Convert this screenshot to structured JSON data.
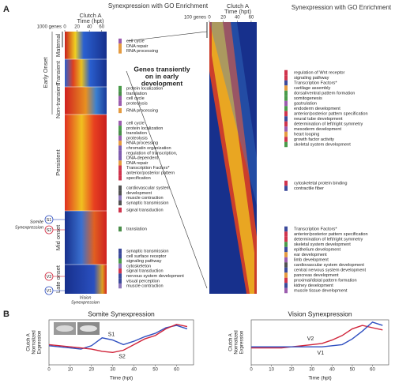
{
  "panel_a": {
    "label": "A",
    "left_heatmap": {
      "header": "Clutch A",
      "axis_label": "Time (hpt)",
      "xticks": [
        0,
        20,
        40,
        60
      ],
      "xlim": [
        0,
        68
      ],
      "scale_label": "1000 genes"
    },
    "right_heatmap": {
      "header": "Clutch A",
      "axis_label": "Time (hpt)",
      "xticks": [
        0,
        20,
        40,
        60
      ],
      "xlim": [
        0,
        68
      ],
      "scale_label": "100 genes"
    },
    "title_left": "Synexpression with GO Enrichment",
    "title_right": "Synexpression with GO Enrichment",
    "callout": [
      "Genes transiently",
      "on in early",
      "development"
    ],
    "row_labels": [
      "Maternal",
      "Transient",
      "Non-transient",
      "Persistent",
      "Mid onset",
      "Late onset"
    ],
    "group_label": "Early Onset",
    "somite_label": [
      "Somite",
      "Synexpression"
    ],
    "vision_label": [
      "Vision",
      "Synexpression"
    ],
    "markers": [
      "S1",
      "S2",
      "V2",
      "V1"
    ],
    "go_left": [
      {
        "terms": [
          {
            "text": "cell cycle",
            "color": "#8a3fa0"
          },
          {
            "text": "DNA repair",
            "color": "#e08a1e"
          },
          {
            "text": "RNA processing",
            "color": "#e08a1e"
          }
        ]
      },
      {
        "terms": [
          {
            "text": "protein localization",
            "color": "#2a8a2a"
          },
          {
            "text": "translation",
            "color": "#2a7a2a"
          },
          {
            "text": "cell cycle",
            "color": "#8a3fa0"
          },
          {
            "text": "proteolysis",
            "color": "#8a3fa0"
          }
        ]
      },
      {
        "terms": [
          {
            "text": "RNA processing",
            "color": "#e08a1e"
          }
        ]
      },
      {
        "terms": [
          {
            "text": "cell cycle",
            "color": "#8a3fa0"
          },
          {
            "text": "protein localization",
            "color": "#2a8a2a"
          },
          {
            "text": "translation",
            "color": "#2a7a2a"
          },
          {
            "text": "proteolysis",
            "color": "#8a3fa0"
          },
          {
            "text": "RNA processing",
            "color": "#e08a1e"
          },
          {
            "text": "chromatin organization",
            "color": "#6a3fa0"
          },
          {
            "text": "regulation of transcription,",
            "color": "#6a3fa0"
          },
          {
            "text": "DNA-dependent",
            "color": "#6a3fa0"
          },
          {
            "text": "DNA repair",
            "color": "#e08a1e"
          },
          {
            "text": "Transcription Factors*",
            "color": "#c8102e"
          },
          {
            "text": "anterior/posterior pattern",
            "color": "#c8102e"
          },
          {
            "text": "specification",
            "color": "#c8102e"
          }
        ]
      },
      {
        "terms": [
          {
            "text": "cardiovascular system",
            "color": "#333333"
          },
          {
            "text": "development",
            "color": "#333333"
          },
          {
            "text": "muscle contraction",
            "color": "#7a5fb0"
          },
          {
            "text": "synaptic transmission",
            "color": "#333333"
          }
        ]
      },
      {
        "terms": [
          {
            "text": "signal transduction",
            "color": "#c8102e"
          }
        ]
      },
      {
        "terms": [
          {
            "text": "translation",
            "color": "#2a7a2a"
          }
        ]
      },
      {
        "terms": [
          {
            "text": "synaptic transmission",
            "color": "#1a2a8a"
          },
          {
            "text": "cell surface receptor",
            "color": "#1a2a8a"
          },
          {
            "text": "signaling pathway",
            "color": "#2a8a2a"
          },
          {
            "text": "cytoskeleton",
            "color": "#7a5fb0"
          },
          {
            "text": "signal transduction",
            "color": "#c8102e"
          },
          {
            "text": "nervous system development",
            "color": "#1a2a8a"
          },
          {
            "text": "visual perception",
            "color": "#1a2a8a"
          },
          {
            "text": "muscle contraction",
            "color": "#7a5fb0"
          }
        ]
      }
    ],
    "go_right": [
      {
        "terms": [
          {
            "text": "regulation of Wnt receptor",
            "color": "#c8102e"
          },
          {
            "text": "signaling pathway",
            "color": "#c8102e"
          },
          {
            "text": "Transcription Factors*",
            "color": "#1a2a8a"
          },
          {
            "text": "cartilage assembly",
            "color": "#e08a1e"
          },
          {
            "text": "dorsal/ventral pattern formation",
            "color": "#2a8a2a"
          },
          {
            "text": "somitogenesis",
            "color": "#2a8a2a"
          },
          {
            "text": "gastrulation",
            "color": "#8a3fa0"
          },
          {
            "text": "endoderm development",
            "color": "#2a8a2a"
          },
          {
            "text": "anterior/posterior pattern specification",
            "color": "#c8102e"
          },
          {
            "text": "neural tube development",
            "color": "#1a2a8a"
          },
          {
            "text": "determination of left/right symmetry",
            "color": "#c8102e"
          },
          {
            "text": "mesoderm development",
            "color": "#8a3fa0"
          },
          {
            "text": "heart looping",
            "color": "#e08a1e"
          },
          {
            "text": "growth factor activity",
            "color": "#c8102e"
          },
          {
            "text": "skeletal system development",
            "color": "#2a8a2a"
          }
        ]
      },
      {
        "terms": [
          {
            "text": "cytoskeletal protein binding",
            "color": "#c8102e"
          },
          {
            "text": "contractile fiber",
            "color": "#1a2a8a"
          }
        ]
      },
      {
        "terms": [
          {
            "text": "Transcription Factors*",
            "color": "#1a2a8a"
          },
          {
            "text": "anterior/posterior pattern specification",
            "color": "#c8102e"
          },
          {
            "text": "determination of left/right symmetry",
            "color": "#c8102e"
          },
          {
            "text": "skeletal system development",
            "color": "#2a8a2a"
          },
          {
            "text": "epithelium development",
            "color": "#1a2a8a"
          },
          {
            "text": "ear development",
            "color": "#e08a1e"
          },
          {
            "text": "limb development",
            "color": "#8a3fa0"
          },
          {
            "text": "cardiovascular system development",
            "color": "#333333"
          },
          {
            "text": "central nervous system development",
            "color": "#1a2a8a"
          },
          {
            "text": "pancreas development",
            "color": "#e08a1e"
          },
          {
            "text": "proximal/distal pattern formation",
            "color": "#c8102e"
          },
          {
            "text": "kidney development",
            "color": "#1a2a8a"
          },
          {
            "text": "muscle tissue development",
            "color": "#8a3fa0"
          }
        ]
      }
    ]
  },
  "panel_b": {
    "label": "B",
    "charts": [
      {
        "type": "line",
        "title": "Somite Synexpression",
        "ylabel": [
          "Clutch A",
          "Normalized",
          "Expression"
        ],
        "xlabel": "Time (hpt)",
        "x": [
          0,
          5,
          10,
          15,
          20,
          25,
          30,
          35,
          40,
          45,
          50,
          55,
          60,
          65
        ],
        "series": [
          {
            "name": "S1",
            "color": "#2f4fc0",
            "values": [
              -0.3,
              -0.4,
              -0.5,
              -0.6,
              -0.3,
              0.4,
              0.2,
              -0.2,
              0.1,
              0.5,
              0.8,
              1.3,
              1.5,
              1.2
            ]
          },
          {
            "name": "S2",
            "color": "#d0243a",
            "values": [
              -0.2,
              -0.3,
              -0.4,
              -0.5,
              -0.6,
              -0.8,
              -0.9,
              -0.7,
              -0.2,
              0.3,
              0.6,
              1.2,
              1.6,
              1.4
            ]
          }
        ],
        "xlim": [
          0,
          68
        ],
        "ylim": [
          -2,
          2
        ],
        "xticks": [
          0,
          10,
          20,
          30,
          40,
          50,
          60
        ]
      },
      {
        "type": "line",
        "title": "Vision Synexpression",
        "ylabel": [
          "Clutch A",
          "Normalized",
          "Expression"
        ],
        "xlabel": "Time (hpt)",
        "x": [
          0,
          5,
          10,
          15,
          20,
          25,
          30,
          35,
          40,
          45,
          50,
          55,
          60,
          65
        ],
        "series": [
          {
            "name": "V2",
            "color": "#d0243a",
            "values": [
              -0.5,
              -0.5,
              -0.5,
              -0.5,
              -0.4,
              -0.3,
              -0.2,
              -0.1,
              0.2,
              0.6,
              1.2,
              1.5,
              1.3,
              1.1
            ]
          },
          {
            "name": "V1",
            "color": "#2f4fc0",
            "values": [
              -0.4,
              -0.4,
              -0.4,
              -0.4,
              -0.4,
              -0.4,
              -0.4,
              -0.4,
              -0.3,
              -0.2,
              0.3,
              1.0,
              1.8,
              1.5
            ]
          }
        ],
        "xlim": [
          0,
          68
        ],
        "ylim": [
          -2,
          2
        ],
        "xticks": [
          0,
          10,
          20,
          30,
          40,
          50,
          60
        ]
      }
    ]
  }
}
